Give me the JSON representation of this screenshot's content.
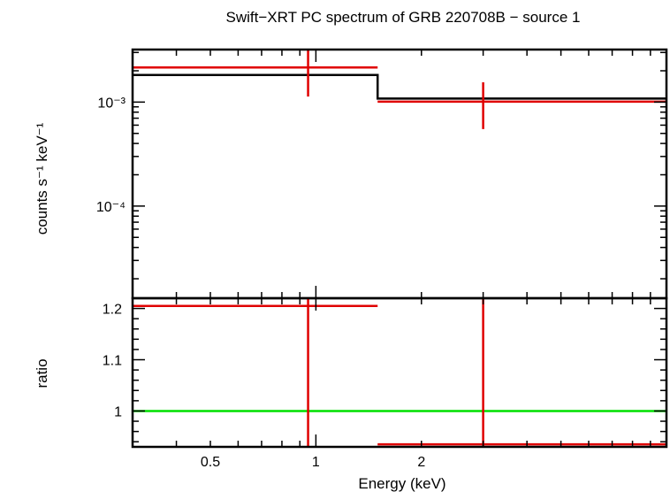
{
  "chart_data": [
    {
      "type": "line",
      "panel": "spectrum",
      "title": "Swift−XRT PC spectrum of GRB 220708B − source 1",
      "ylabel": "counts s⁻¹ keV⁻¹",
      "yscale": "log",
      "xscale": "log",
      "xlim": [
        0.3,
        10
      ],
      "ylim": [
        1.3e-05,
        0.0032
      ],
      "ytick_labels": [
        "10⁻³",
        "10⁻⁴"
      ],
      "ytick_values": [
        0.001,
        0.0001
      ],
      "data": [
        {
          "x": 0.95,
          "xlo": 0.3,
          "xhi": 1.5,
          "y": 0.00215,
          "ylo": 0.00113,
          "yhi": 0.0032
        },
        {
          "x": 3.0,
          "xlo": 1.5,
          "xhi": 10,
          "y": 0.00101,
          "ylo": 0.00055,
          "yhi": 0.00155
        }
      ],
      "model": {
        "edges": [
          0.3,
          1.5,
          10
        ],
        "values": [
          0.00182,
          0.00108
        ]
      },
      "colors": {
        "data": "#e00000",
        "model": "#000000"
      }
    },
    {
      "type": "line",
      "panel": "ratio",
      "ylabel": "ratio",
      "xlabel": "Energy (keV)",
      "xscale": "log",
      "xlim": [
        0.3,
        10
      ],
      "ylim": [
        0.93,
        1.22
      ],
      "xtick_labels": [
        "0.5",
        "1",
        "2"
      ],
      "xtick_values": [
        0.5,
        1,
        2
      ],
      "ytick_labels": [
        "1.2",
        "1.1",
        "1"
      ],
      "ytick_values": [
        1.2,
        1.1,
        1.0
      ],
      "data": [
        {
          "x": 0.95,
          "xlo": 0.3,
          "xhi": 1.5,
          "y": 1.205,
          "ylo": 0.93,
          "yhi": 1.22
        },
        {
          "x": 3.0,
          "xlo": 1.5,
          "xhi": 10,
          "y": 0.935,
          "ylo": 0.93,
          "yhi": 1.22
        }
      ],
      "reference_line": 1.0,
      "colors": {
        "data": "#e00000",
        "reference": "#00e000"
      }
    }
  ]
}
